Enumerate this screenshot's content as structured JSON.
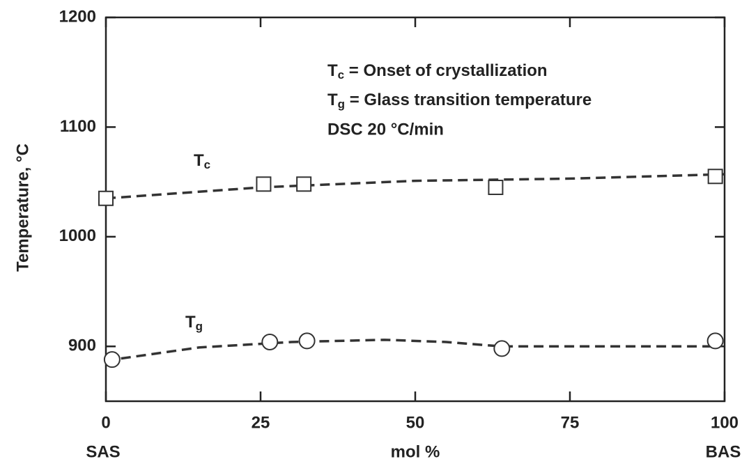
{
  "chart_data": {
    "type": "scatter",
    "y_label": "Temperature, °C",
    "x_label": "mol %",
    "x_end_labels": [
      "SAS",
      "BAS"
    ],
    "annotations": [
      "Tc = Onset of crystallization",
      "Tg = Glass transition temperature",
      "DSC 20 °C/min"
    ],
    "xlim": [
      0,
      100
    ],
    "xticks": [
      0,
      25,
      50,
      75,
      100
    ],
    "ylim": [
      850,
      1200
    ],
    "yticks": [
      900,
      1000,
      1100,
      1200
    ],
    "series": [
      {
        "name": "Tc",
        "marker": "square",
        "color": "#333333",
        "x": [
          0,
          25.5,
          32,
          63,
          98.5
        ],
        "values": [
          1035,
          1048,
          1048,
          1045,
          1055
        ],
        "fit_x": [
          0,
          25,
          50,
          75,
          100
        ],
        "fit_values": [
          1035,
          1045,
          1051,
          1053,
          1057
        ]
      },
      {
        "name": "Tg",
        "marker": "circle",
        "color": "#333333",
        "x": [
          1,
          26.5,
          32.5,
          64,
          98.5
        ],
        "values": [
          888,
          904,
          905,
          898,
          905
        ],
        "fit_x": [
          0,
          15,
          30,
          45,
          55,
          64,
          80,
          98
        ],
        "fit_values": [
          887,
          899,
          904,
          906,
          904,
          900,
          900,
          900
        ]
      }
    ]
  }
}
